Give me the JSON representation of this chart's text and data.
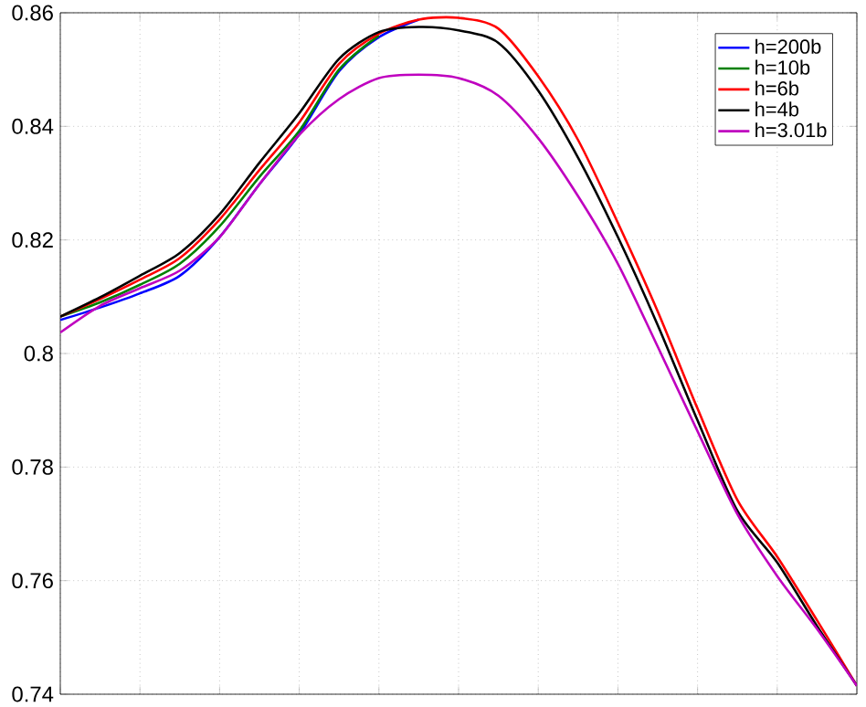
{
  "chart_data": {
    "type": "line",
    "categories": [
      null,
      null,
      null,
      null,
      null,
      null,
      null,
      null,
      null,
      null,
      null,
      null,
      null,
      null,
      null,
      null,
      null,
      null,
      null,
      null,
      null
    ],
    "series": [
      {
        "name": "h=200b",
        "color": "#0000ff",
        "values": [
          0.8059,
          0.8081,
          0.8106,
          0.8137,
          0.8205,
          0.8298,
          0.8386,
          0.8497,
          0.8557,
          0.8588,
          null,
          null,
          null,
          null,
          null,
          null,
          null,
          null,
          null,
          null,
          null
        ]
      },
      {
        "name": "h=10b",
        "color": "#008000",
        "values": [
          0.8065,
          0.809,
          0.8121,
          0.8158,
          0.8224,
          0.8311,
          0.8392,
          0.85,
          0.856,
          null,
          null,
          null,
          null,
          null,
          null,
          null,
          null,
          null,
          null,
          null,
          null
        ]
      },
      {
        "name": "h=6b",
        "color": "#ff0000",
        "values": [
          0.8065,
          0.8096,
          0.813,
          0.8168,
          0.8236,
          0.8323,
          0.8407,
          0.851,
          0.8563,
          0.8588,
          0.8591,
          0.8572,
          0.8488,
          0.8376,
          0.823,
          0.8074,
          0.7903,
          0.7742,
          0.7642,
          0.753,
          0.7415
        ]
      },
      {
        "name": "h=4b",
        "color": "#000000",
        "values": [
          0.8065,
          0.8099,
          0.8137,
          0.8177,
          0.8245,
          0.8336,
          0.8423,
          0.8519,
          0.8566,
          0.8575,
          0.8569,
          0.8547,
          0.8463,
          0.8345,
          0.8205,
          0.805,
          0.7882,
          0.7723,
          0.7632,
          0.752,
          0.7415
        ]
      },
      {
        "name": "h=3.01b",
        "color": "#bf00bf",
        "values": [
          0.8037,
          0.8084,
          0.8115,
          0.8146,
          0.8205,
          0.8298,
          0.8385,
          0.8448,
          0.8485,
          0.8491,
          0.8485,
          0.8454,
          0.8379,
          0.8277,
          0.8158,
          0.8012,
          0.7863,
          0.7717,
          0.7608,
          0.7515,
          0.7415
        ]
      }
    ],
    "ylim": [
      0.74,
      0.86
    ],
    "yticks": [
      0.74,
      0.76,
      0.78,
      0.8,
      0.82,
      0.84,
      0.86
    ],
    "grid": true,
    "legend": "top right",
    "tick_labels": "y"
  }
}
